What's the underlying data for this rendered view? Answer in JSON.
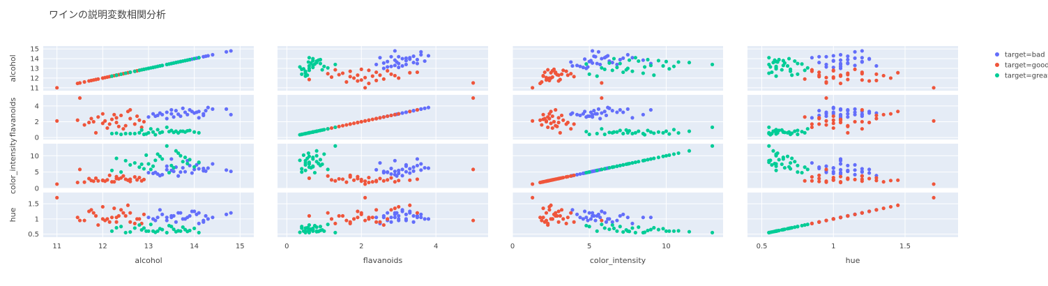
{
  "chart_data": {
    "type": "scatter",
    "subtype": "scatter_matrix",
    "title": "ワインの説明変数相関分析",
    "dimensions": [
      "alcohol",
      "flavanoids",
      "color_intensity",
      "hue"
    ],
    "ranges": {
      "alcohol": [
        10.7,
        15.3
      ],
      "flavanoids": [
        -0.25,
        5.4
      ],
      "color_intensity": [
        0,
        13.7
      ],
      "hue": [
        0.4,
        1.87
      ]
    },
    "ticks": {
      "alcohol": [
        11,
        12,
        13,
        14,
        15
      ],
      "flavanoids": [
        0,
        2,
        4
      ],
      "color_intensity": [
        0,
        5,
        10
      ],
      "hue": [
        0.5,
        1,
        1.5
      ]
    },
    "tick_labels": {
      "alcohol": [
        "11",
        "12",
        "13",
        "14",
        "15"
      ],
      "flavanoids": [
        "0",
        "2",
        "4"
      ],
      "color_intensity": [
        "0",
        "5",
        "10"
      ],
      "hue": [
        "0.5",
        "1",
        "1.5"
      ]
    },
    "legend_position": "top-right",
    "grid": true,
    "series": [
      {
        "name": "target=bad",
        "color": "#636efa",
        "columns": [
          "alcohol",
          "flavanoids",
          "color_intensity",
          "hue"
        ],
        "points": [
          [
            13.2,
            2.8,
            4.4,
            1.05
          ],
          [
            13.5,
            3.0,
            5.5,
            1.1
          ],
          [
            13.8,
            3.2,
            5.1,
            1.0
          ],
          [
            14.1,
            3.3,
            6.0,
            1.2
          ],
          [
            14.2,
            3.0,
            5.4,
            0.95
          ],
          [
            13.0,
            2.6,
            4.8,
            1.05
          ],
          [
            13.3,
            2.9,
            4.2,
            1.15
          ],
          [
            13.6,
            3.4,
            6.5,
            0.9
          ],
          [
            13.9,
            3.5,
            7.0,
            1.1
          ],
          [
            14.0,
            3.1,
            5.8,
            1.25
          ],
          [
            14.3,
            3.8,
            6.2,
            1.0
          ],
          [
            14.4,
            3.6,
            7.5,
            1.05
          ],
          [
            13.7,
            2.7,
            5.0,
            1.2
          ],
          [
            13.4,
            3.2,
            6.8,
            0.95
          ],
          [
            14.8,
            2.9,
            5.2,
            1.2
          ],
          [
            14.7,
            3.6,
            5.6,
            1.15
          ],
          [
            13.1,
            3.0,
            4.6,
            1.0
          ],
          [
            13.85,
            2.9,
            8.5,
            1.05
          ],
          [
            14.1,
            2.5,
            7.8,
            0.85
          ],
          [
            13.25,
            3.1,
            3.9,
            1.3
          ],
          [
            13.55,
            2.6,
            5.2,
            1.1
          ],
          [
            13.95,
            3.3,
            4.7,
            1.25
          ],
          [
            14.2,
            2.8,
            6.1,
            0.9
          ],
          [
            13.4,
            2.4,
            5.7,
            1.05
          ],
          [
            13.75,
            3.7,
            6.3,
            1.0
          ],
          [
            14.05,
            3.2,
            7.2,
            1.15
          ],
          [
            13.65,
            2.95,
            3.8,
            1.2
          ],
          [
            14.25,
            3.4,
            5.3,
            1.1
          ],
          [
            13.15,
            2.7,
            4.9,
            0.95
          ],
          [
            13.5,
            3.5,
            9.0,
            1.05
          ]
        ]
      },
      {
        "name": "target=good",
        "color": "#ef553b",
        "columns": [
          "alcohol",
          "flavanoids",
          "color_intensity",
          "hue"
        ],
        "points": [
          [
            11.0,
            2.1,
            1.3,
            1.7
          ],
          [
            12.0,
            1.8,
            2.5,
            1.0
          ],
          [
            12.3,
            2.5,
            3.0,
            0.9
          ],
          [
            12.5,
            1.5,
            2.8,
            1.1
          ],
          [
            11.8,
            2.0,
            2.2,
            1.2
          ],
          [
            12.7,
            1.7,
            3.5,
            0.85
          ],
          [
            12.2,
            2.3,
            2.0,
            1.05
          ],
          [
            11.5,
            5.0,
            5.8,
            0.95
          ],
          [
            12.4,
            2.8,
            3.2,
            1.3
          ],
          [
            12.1,
            1.2,
            2.6,
            1.0
          ],
          [
            11.7,
            1.9,
            3.0,
            1.25
          ],
          [
            12.6,
            2.4,
            2.1,
            0.9
          ],
          [
            12.9,
            2.0,
            2.7,
            1.15
          ],
          [
            12.0,
            3.0,
            2.4,
            1.4
          ],
          [
            11.6,
            1.6,
            1.9,
            0.95
          ],
          [
            12.8,
            2.2,
            3.3,
            1.0
          ],
          [
            12.35,
            1.4,
            2.9,
            1.1
          ],
          [
            11.9,
            2.6,
            2.3,
            0.8
          ],
          [
            12.45,
            1.1,
            3.8,
            1.2
          ],
          [
            12.25,
            2.9,
            2.0,
            1.35
          ],
          [
            11.45,
            2.2,
            1.8,
            1.05
          ],
          [
            12.55,
            3.3,
            2.5,
            1.45
          ],
          [
            12.15,
            1.7,
            4.0,
            0.9
          ],
          [
            12.75,
            2.7,
            2.6,
            1.0
          ],
          [
            11.85,
            0.6,
            3.1,
            1.1
          ],
          [
            12.05,
            2.1,
            2.2,
            0.95
          ],
          [
            12.6,
            3.5,
            2.8,
            1.2
          ],
          [
            12.3,
            1.9,
            3.6,
            1.05
          ],
          [
            11.75,
            2.4,
            2.4,
            1.3
          ],
          [
            12.85,
            1.3,
            2.3,
            0.85
          ]
        ]
      },
      {
        "name": "target=great",
        "color": "#00cc96",
        "columns": [
          "alcohol",
          "flavanoids",
          "color_intensity",
          "hue"
        ],
        "points": [
          [
            13.0,
            0.6,
            7.5,
            0.6
          ],
          [
            12.5,
            0.5,
            8.5,
            0.55
          ],
          [
            13.3,
            0.7,
            9.0,
            0.65
          ],
          [
            13.7,
            0.8,
            10.0,
            0.6
          ],
          [
            12.9,
            0.4,
            6.0,
            0.7
          ],
          [
            13.5,
            0.9,
            7.0,
            0.75
          ],
          [
            14.1,
            0.6,
            8.0,
            0.55
          ],
          [
            12.2,
            0.5,
            5.5,
            0.6
          ],
          [
            13.8,
            0.7,
            9.5,
            0.65
          ],
          [
            13.2,
            1.0,
            10.5,
            0.6
          ],
          [
            12.8,
            0.6,
            6.5,
            0.8
          ],
          [
            13.6,
            0.8,
            11.5,
            0.58
          ],
          [
            13.4,
            1.3,
            13.0,
            0.55
          ],
          [
            12.7,
            0.5,
            7.8,
            0.7
          ],
          [
            13.9,
            0.9,
            8.8,
            0.62
          ],
          [
            12.4,
            0.4,
            5.0,
            0.75
          ],
          [
            13.1,
            0.7,
            6.8,
            0.6
          ],
          [
            13.25,
            0.6,
            9.8,
            0.68
          ],
          [
            12.6,
            0.5,
            7.2,
            0.57
          ],
          [
            13.75,
            0.8,
            8.2,
            0.73
          ],
          [
            13.05,
            1.1,
            5.8,
            0.82
          ],
          [
            12.95,
            0.45,
            10.2,
            0.6
          ],
          [
            13.55,
            0.65,
            6.3,
            0.66
          ],
          [
            13.85,
            0.85,
            7.6,
            0.59
          ],
          [
            12.3,
            0.55,
            9.2,
            0.71
          ],
          [
            13.45,
            0.75,
            4.8,
            0.78
          ],
          [
            13.15,
            0.35,
            8.6,
            0.56
          ],
          [
            12.85,
            0.95,
            7.4,
            0.64
          ],
          [
            13.65,
            0.58,
            10.8,
            0.61
          ],
          [
            14.0,
            0.7,
            6.6,
            0.69
          ]
        ]
      }
    ]
  }
}
